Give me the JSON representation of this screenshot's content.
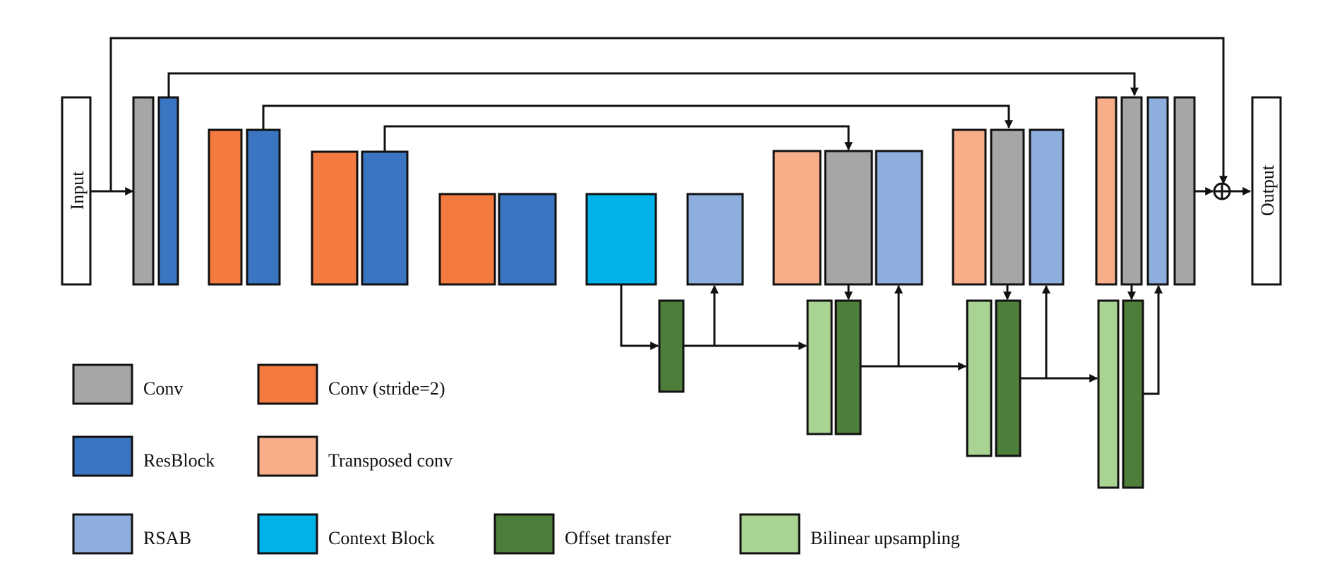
{
  "colors": {
    "conv": "#a6a6a6",
    "resblock": "#3a75c2",
    "rsab": "#8eaedd",
    "conv_stride": "#f47b40",
    "transposed_conv": "#f9ae8a",
    "context_block": "#00b2ea",
    "offset_transfer": "#4e7f3a",
    "bilinear_upsampling": "#a9d393",
    "io": "#ffffff",
    "line": "#111111"
  },
  "io": {
    "input_label": "Input",
    "output_label": "Output"
  },
  "legend": [
    {
      "key": "conv",
      "label": "Conv"
    },
    {
      "key": "conv_stride",
      "label": "Conv (stride=2)"
    },
    {
      "key": "resblock",
      "label": "ResBlock"
    },
    {
      "key": "transposed_conv",
      "label": "Transposed conv"
    },
    {
      "key": "rsab",
      "label": "RSAB"
    },
    {
      "key": "context_block",
      "label": "Context Block"
    },
    {
      "key": "offset_transfer",
      "label": "Offset transfer"
    },
    {
      "key": "bilinear_upsampling",
      "label": "Bilinear upsampling"
    }
  ],
  "symbols": {
    "sum": "addition-node"
  }
}
